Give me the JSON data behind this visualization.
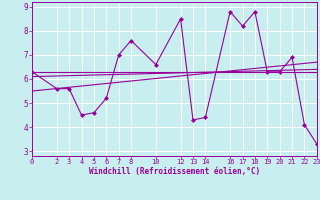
{
  "xlabel": "Windchill (Refroidissement éolien,°C)",
  "bg_color": "#c8eef0",
  "line_color": "#990099",
  "grid_color": "#c0dfe0",
  "xlim": [
    0,
    23
  ],
  "ylim": [
    2.8,
    9.2
  ],
  "yticks": [
    3,
    4,
    5,
    6,
    7,
    8,
    9
  ],
  "xticks": [
    0,
    2,
    3,
    4,
    5,
    6,
    7,
    8,
    10,
    12,
    13,
    14,
    16,
    17,
    18,
    19,
    20,
    21,
    22,
    23
  ],
  "xtick_labels": [
    "0",
    "2",
    "3",
    "4",
    "5",
    "6",
    "7",
    "8",
    "10",
    "121314",
    "",
    "",
    "1617181920212223",
    "",
    "",
    "",
    "",
    "",
    "",
    ""
  ],
  "line1_x": [
    0,
    2,
    3,
    4,
    5,
    6,
    7,
    8,
    10,
    12,
    13,
    14,
    16,
    17,
    18,
    19,
    20,
    21,
    22,
    23
  ],
  "line1_y": [
    6.3,
    5.6,
    5.6,
    4.5,
    4.6,
    5.2,
    7.0,
    7.6,
    6.6,
    8.5,
    4.3,
    4.4,
    8.8,
    8.2,
    8.8,
    6.3,
    6.3,
    6.9,
    4.1,
    3.3
  ],
  "line2_x": [
    0,
    23
  ],
  "line2_y": [
    6.3,
    6.3
  ],
  "line3_x": [
    0,
    23
  ],
  "line3_y": [
    5.5,
    6.7
  ],
  "line4_x": [
    0,
    23
  ],
  "line4_y": [
    6.1,
    6.4
  ]
}
